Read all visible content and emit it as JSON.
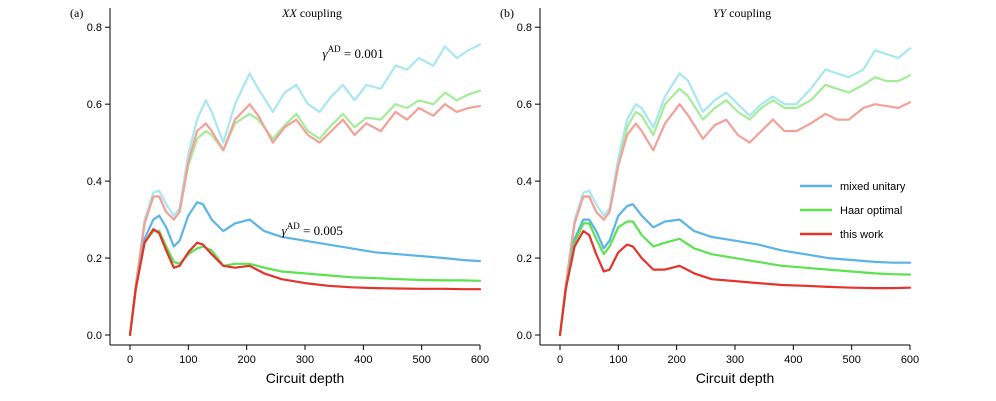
{
  "chart_data": [
    {
      "type": "line",
      "panel_label": "(a)",
      "title_italic": "XX",
      "title_rest": " coupling",
      "xlabel": "Circuit depth",
      "xlim": [
        0,
        600
      ],
      "ylim": [
        0,
        0.85
      ],
      "xticks": [
        "0",
        "100",
        "200",
        "300",
        "400",
        "500",
        "600"
      ],
      "yticks": [
        "0.0",
        "0.2",
        "0.4",
        "0.6",
        "0.8"
      ],
      "annotations": [
        {
          "symbol": "γ",
          "sup": "AD",
          "text": " = 0.001",
          "at": [
            330,
            0.72
          ]
        },
        {
          "symbol": "γ",
          "sup": "AD",
          "text": " = 0.005",
          "at": [
            260,
            0.26
          ]
        }
      ],
      "series": [
        {
          "group": "0.001",
          "color": "#a8e6f0",
          "x": [
            0,
            10,
            25,
            40,
            50,
            62,
            75,
            85,
            100,
            115,
            130,
            140,
            160,
            180,
            205,
            220,
            245,
            265,
            285,
            305,
            325,
            345,
            365,
            385,
            405,
            430,
            455,
            475,
            495,
            520,
            540,
            560,
            580,
            600
          ],
          "y": [
            0,
            0.13,
            0.3,
            0.37,
            0.375,
            0.34,
            0.31,
            0.33,
            0.47,
            0.56,
            0.61,
            0.58,
            0.5,
            0.6,
            0.68,
            0.64,
            0.58,
            0.63,
            0.65,
            0.6,
            0.58,
            0.62,
            0.65,
            0.61,
            0.65,
            0.64,
            0.7,
            0.69,
            0.72,
            0.7,
            0.75,
            0.72,
            0.74,
            0.755
          ]
        },
        {
          "group": "0.001",
          "color": "#a4ec98",
          "x": [
            0,
            10,
            25,
            40,
            50,
            62,
            75,
            85,
            100,
            115,
            130,
            140,
            160,
            180,
            205,
            220,
            245,
            265,
            285,
            305,
            325,
            345,
            365,
            385,
            405,
            430,
            455,
            475,
            495,
            520,
            540,
            560,
            580,
            600
          ],
          "y": [
            0,
            0.13,
            0.29,
            0.36,
            0.36,
            0.32,
            0.3,
            0.32,
            0.44,
            0.51,
            0.53,
            0.52,
            0.48,
            0.55,
            0.575,
            0.56,
            0.51,
            0.545,
            0.575,
            0.53,
            0.51,
            0.545,
            0.575,
            0.54,
            0.565,
            0.56,
            0.6,
            0.59,
            0.61,
            0.6,
            0.63,
            0.61,
            0.625,
            0.635
          ]
        },
        {
          "group": "0.001",
          "color": "#f2a09a",
          "x": [
            0,
            10,
            25,
            40,
            50,
            62,
            75,
            85,
            100,
            115,
            130,
            140,
            160,
            180,
            205,
            220,
            245,
            265,
            285,
            305,
            325,
            345,
            365,
            385,
            405,
            430,
            455,
            475,
            495,
            520,
            540,
            560,
            580,
            600
          ],
          "y": [
            0,
            0.13,
            0.29,
            0.36,
            0.36,
            0.32,
            0.3,
            0.32,
            0.45,
            0.53,
            0.55,
            0.53,
            0.48,
            0.56,
            0.6,
            0.57,
            0.5,
            0.54,
            0.56,
            0.52,
            0.5,
            0.53,
            0.56,
            0.52,
            0.55,
            0.53,
            0.58,
            0.56,
            0.59,
            0.57,
            0.6,
            0.58,
            0.59,
            0.595
          ]
        },
        {
          "group": "0.005",
          "color": "#5ab4e5",
          "name": "mixed unitary",
          "x": [
            0,
            10,
            25,
            40,
            50,
            62,
            75,
            85,
            100,
            115,
            125,
            140,
            160,
            180,
            205,
            230,
            260,
            300,
            340,
            380,
            420,
            460,
            500,
            540,
            570,
            600
          ],
          "y": [
            0,
            0.12,
            0.25,
            0.3,
            0.31,
            0.28,
            0.23,
            0.245,
            0.31,
            0.345,
            0.34,
            0.3,
            0.27,
            0.29,
            0.3,
            0.27,
            0.255,
            0.245,
            0.235,
            0.225,
            0.215,
            0.21,
            0.205,
            0.2,
            0.195,
            0.192
          ]
        },
        {
          "group": "0.005",
          "color": "#5be24f",
          "name": "Haar optimal",
          "x": [
            0,
            10,
            25,
            40,
            50,
            62,
            75,
            85,
            100,
            115,
            125,
            140,
            160,
            180,
            205,
            230,
            260,
            300,
            340,
            380,
            420,
            460,
            500,
            540,
            570,
            600
          ],
          "y": [
            0,
            0.12,
            0.24,
            0.27,
            0.27,
            0.23,
            0.19,
            0.185,
            0.21,
            0.225,
            0.23,
            0.22,
            0.18,
            0.185,
            0.185,
            0.175,
            0.165,
            0.16,
            0.155,
            0.15,
            0.148,
            0.145,
            0.143,
            0.142,
            0.142,
            0.141
          ]
        },
        {
          "group": "0.005",
          "color": "#e5322b",
          "name": "this work",
          "x": [
            0,
            10,
            25,
            40,
            50,
            62,
            75,
            85,
            100,
            115,
            125,
            140,
            160,
            180,
            205,
            230,
            260,
            300,
            340,
            380,
            420,
            460,
            500,
            540,
            570,
            600
          ],
          "y": [
            0,
            0.12,
            0.24,
            0.275,
            0.265,
            0.22,
            0.175,
            0.18,
            0.215,
            0.24,
            0.235,
            0.21,
            0.18,
            0.175,
            0.18,
            0.16,
            0.145,
            0.135,
            0.128,
            0.124,
            0.122,
            0.121,
            0.12,
            0.12,
            0.119,
            0.119
          ]
        }
      ]
    },
    {
      "type": "line",
      "panel_label": "(b)",
      "title_italic": "YY",
      "title_rest": " coupling",
      "xlabel": "Circuit depth",
      "xlim": [
        0,
        600
      ],
      "ylim": [
        0,
        0.85
      ],
      "xticks": [
        "0",
        "100",
        "200",
        "300",
        "400",
        "500",
        "600"
      ],
      "yticks": [
        "0.0",
        "0.2",
        "0.4",
        "0.6",
        "0.8"
      ],
      "legend": {
        "placement": "right-middle",
        "entries": [
          {
            "label": "mixed unitary",
            "color": "#5ab4e5"
          },
          {
            "label": "Haar optimal",
            "color": "#5be24f"
          },
          {
            "label": "this work",
            "color": "#e5322b"
          }
        ]
      },
      "series": [
        {
          "group": "0.001",
          "color": "#a8e6f0",
          "x": [
            0,
            10,
            25,
            40,
            50,
            62,
            75,
            85,
            100,
            115,
            130,
            140,
            160,
            180,
            205,
            220,
            245,
            265,
            285,
            305,
            325,
            345,
            365,
            385,
            405,
            430,
            455,
            475,
            495,
            520,
            540,
            560,
            580,
            600
          ],
          "y": [
            0,
            0.13,
            0.3,
            0.37,
            0.375,
            0.34,
            0.31,
            0.33,
            0.46,
            0.56,
            0.6,
            0.59,
            0.54,
            0.62,
            0.68,
            0.66,
            0.58,
            0.61,
            0.63,
            0.6,
            0.57,
            0.6,
            0.62,
            0.6,
            0.6,
            0.64,
            0.69,
            0.68,
            0.67,
            0.69,
            0.74,
            0.73,
            0.72,
            0.745
          ]
        },
        {
          "group": "0.001",
          "color": "#a4ec98",
          "x": [
            0,
            10,
            25,
            40,
            50,
            62,
            75,
            85,
            100,
            115,
            130,
            140,
            160,
            180,
            205,
            220,
            245,
            265,
            285,
            305,
            325,
            345,
            365,
            385,
            405,
            430,
            455,
            475,
            495,
            520,
            540,
            560,
            580,
            600
          ],
          "y": [
            0,
            0.13,
            0.29,
            0.36,
            0.36,
            0.32,
            0.3,
            0.32,
            0.44,
            0.54,
            0.58,
            0.57,
            0.52,
            0.6,
            0.64,
            0.62,
            0.56,
            0.59,
            0.61,
            0.58,
            0.56,
            0.59,
            0.61,
            0.59,
            0.59,
            0.61,
            0.65,
            0.64,
            0.63,
            0.65,
            0.67,
            0.66,
            0.66,
            0.675
          ]
        },
        {
          "group": "0.001",
          "color": "#f2a09a",
          "x": [
            0,
            10,
            25,
            40,
            50,
            62,
            75,
            85,
            100,
            115,
            130,
            140,
            160,
            180,
            205,
            220,
            245,
            265,
            285,
            305,
            325,
            345,
            365,
            385,
            405,
            430,
            455,
            475,
            495,
            520,
            540,
            560,
            580,
            600
          ],
          "y": [
            0,
            0.13,
            0.29,
            0.36,
            0.36,
            0.32,
            0.3,
            0.32,
            0.44,
            0.52,
            0.55,
            0.53,
            0.48,
            0.55,
            0.6,
            0.57,
            0.51,
            0.545,
            0.56,
            0.52,
            0.5,
            0.53,
            0.56,
            0.53,
            0.53,
            0.55,
            0.575,
            0.56,
            0.56,
            0.59,
            0.6,
            0.595,
            0.59,
            0.605
          ]
        },
        {
          "group": "0.005",
          "color": "#5ab4e5",
          "name": "mixed unitary",
          "x": [
            0,
            10,
            25,
            40,
            50,
            62,
            75,
            85,
            100,
            115,
            125,
            140,
            160,
            180,
            205,
            230,
            260,
            300,
            340,
            380,
            420,
            460,
            500,
            540,
            570,
            600
          ],
          "y": [
            0,
            0.12,
            0.25,
            0.3,
            0.3,
            0.27,
            0.225,
            0.245,
            0.31,
            0.335,
            0.34,
            0.31,
            0.28,
            0.295,
            0.3,
            0.27,
            0.255,
            0.245,
            0.235,
            0.22,
            0.21,
            0.2,
            0.195,
            0.19,
            0.188,
            0.188
          ]
        },
        {
          "group": "0.005",
          "color": "#5be24f",
          "name": "Haar optimal",
          "x": [
            0,
            10,
            25,
            40,
            50,
            62,
            75,
            85,
            100,
            115,
            125,
            140,
            160,
            180,
            205,
            230,
            260,
            300,
            340,
            380,
            420,
            460,
            500,
            540,
            570,
            600
          ],
          "y": [
            0,
            0.12,
            0.24,
            0.29,
            0.29,
            0.25,
            0.21,
            0.23,
            0.28,
            0.295,
            0.295,
            0.26,
            0.23,
            0.24,
            0.25,
            0.225,
            0.21,
            0.2,
            0.19,
            0.18,
            0.175,
            0.17,
            0.165,
            0.16,
            0.158,
            0.157
          ]
        },
        {
          "group": "0.005",
          "color": "#e5322b",
          "name": "this work",
          "x": [
            0,
            10,
            25,
            40,
            50,
            62,
            75,
            85,
            100,
            115,
            125,
            140,
            160,
            180,
            205,
            230,
            260,
            300,
            340,
            380,
            420,
            460,
            500,
            540,
            570,
            600
          ],
          "y": [
            0,
            0.12,
            0.23,
            0.27,
            0.26,
            0.21,
            0.165,
            0.17,
            0.215,
            0.235,
            0.23,
            0.2,
            0.17,
            0.17,
            0.18,
            0.16,
            0.145,
            0.14,
            0.135,
            0.13,
            0.128,
            0.125,
            0.123,
            0.122,
            0.122,
            0.123
          ]
        }
      ]
    }
  ]
}
